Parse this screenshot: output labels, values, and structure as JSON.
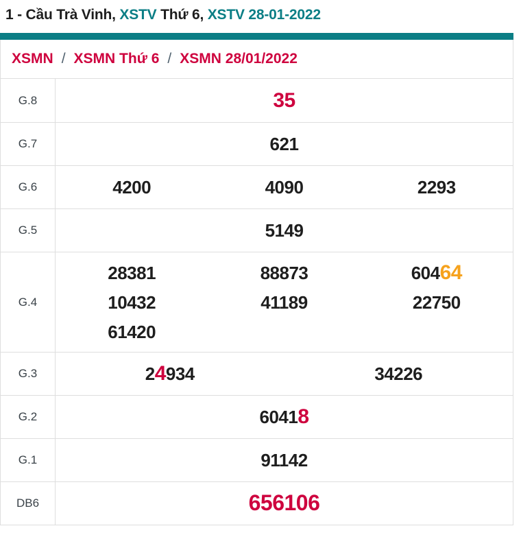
{
  "title": {
    "segments": [
      {
        "text": "1 - Cầu Trà Vinh, ",
        "style": "dark",
        "link": false
      },
      {
        "text": "XSTV",
        "style": "teal",
        "link": true
      },
      {
        "text": " Thứ 6, ",
        "style": "dark",
        "link": false
      },
      {
        "text": "XSTV 28-01-2022",
        "style": "teal",
        "link": true
      }
    ]
  },
  "breadcrumb": {
    "separator": "/",
    "items": [
      {
        "label": "XSMN"
      },
      {
        "label": "XSMN Thứ 6"
      },
      {
        "label": "XSMN 28/01/2022"
      }
    ]
  },
  "results_table": {
    "rows": [
      {
        "label": "G.8",
        "cols": 1,
        "tall": false,
        "lines": [
          [
            [
              {
                "t": "35",
                "s": "r"
              }
            ]
          ]
        ]
      },
      {
        "label": "G.7",
        "cols": 1,
        "tall": false,
        "lines": [
          [
            [
              {
                "t": "621",
                "s": "b"
              }
            ]
          ]
        ]
      },
      {
        "label": "G.6",
        "cols": 3,
        "tall": false,
        "lines": [
          [
            [
              {
                "t": "4200",
                "s": "b"
              }
            ],
            [
              {
                "t": "4090",
                "s": "b"
              }
            ],
            [
              {
                "t": "2293",
                "s": "b"
              }
            ]
          ]
        ]
      },
      {
        "label": "G.5",
        "cols": 1,
        "tall": false,
        "lines": [
          [
            [
              {
                "t": "5149",
                "s": "b"
              }
            ]
          ]
        ]
      },
      {
        "label": "G.4",
        "cols": 3,
        "tall": true,
        "lines": [
          [
            [
              {
                "t": "28381",
                "s": "b"
              }
            ],
            [
              {
                "t": "88873",
                "s": "b"
              }
            ],
            [
              {
                "t": "604",
                "s": "b"
              },
              {
                "t": "64",
                "s": "o"
              }
            ]
          ],
          [
            [
              {
                "t": "10432",
                "s": "b"
              }
            ],
            [
              {
                "t": "41189",
                "s": "b"
              }
            ],
            [
              {
                "t": "22750",
                "s": "b"
              }
            ]
          ],
          [
            [
              {
                "t": "61420",
                "s": "b"
              }
            ],
            [],
            []
          ]
        ]
      },
      {
        "label": "G.3",
        "cols": 2,
        "tall": false,
        "lines": [
          [
            [
              {
                "t": "2",
                "s": "b"
              },
              {
                "t": "4",
                "s": "r"
              },
              {
                "t": "934",
                "s": "b"
              }
            ],
            [
              {
                "t": "34226",
                "s": "b"
              }
            ]
          ]
        ]
      },
      {
        "label": "G.2",
        "cols": 1,
        "tall": false,
        "lines": [
          [
            [
              {
                "t": "6041",
                "s": "b"
              },
              {
                "t": "8",
                "s": "r"
              }
            ]
          ]
        ]
      },
      {
        "label": "G.1",
        "cols": 1,
        "tall": false,
        "lines": [
          [
            [
              {
                "t": "91142",
                "s": "b"
              }
            ]
          ]
        ]
      },
      {
        "label": "DB6",
        "cols": 1,
        "tall": false,
        "lines": [
          [
            [
              {
                "t": "656106",
                "s": "rx"
              }
            ]
          ]
        ]
      }
    ]
  },
  "colors": {
    "teal": "#0B7E85",
    "crimson": "#CE023E",
    "orange": "#F6A21D",
    "text_dark": "#1E1E1E",
    "label_gray": "#3A4248",
    "border": "#DEDEDE",
    "separator_gray": "#50616E"
  }
}
